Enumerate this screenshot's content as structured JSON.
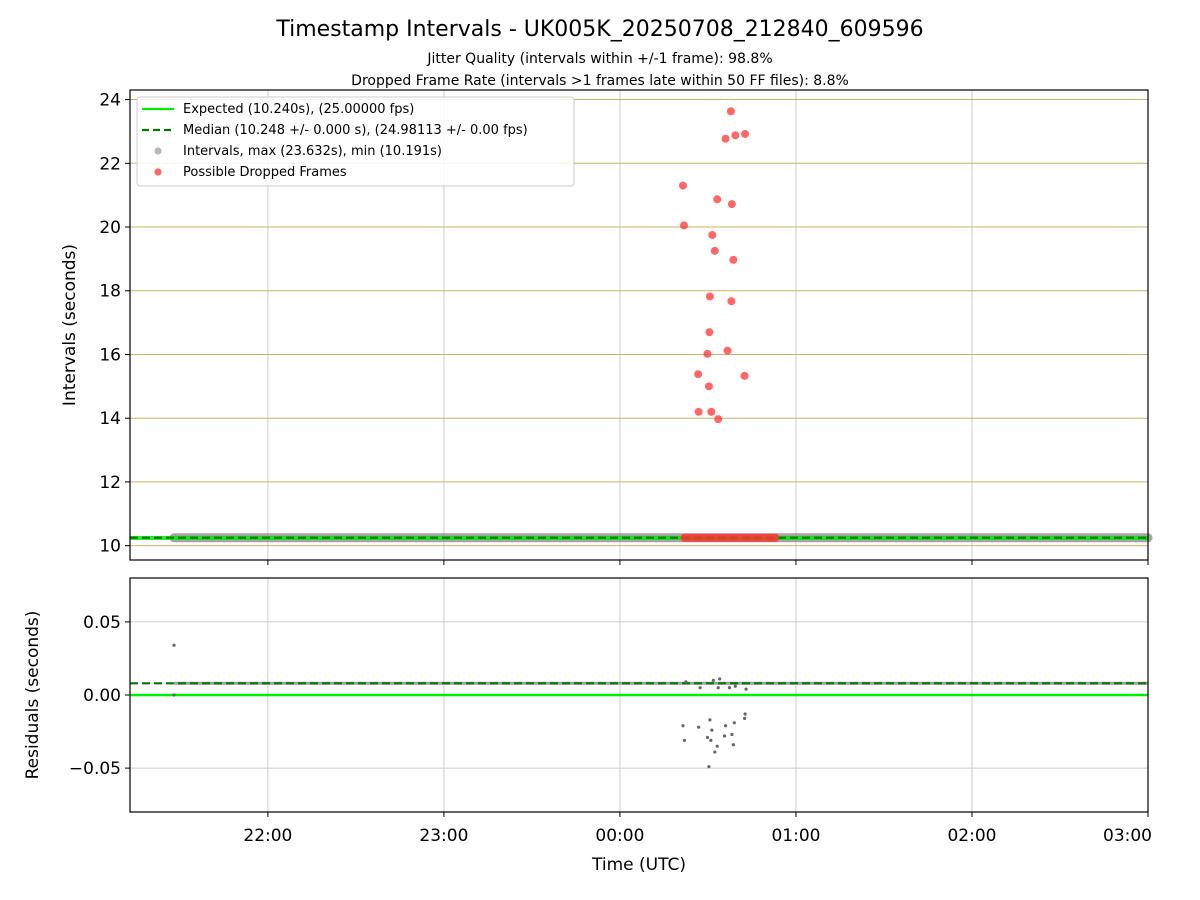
{
  "title": "Timestamp Intervals - UK005K_20250708_212840_609596",
  "subtitle_1": "Jitter Quality (intervals within +/-1 frame): 98.8%",
  "subtitle_2": "Dropped Frame Rate (intervals >1 frames late within 50 FF files): 8.8%",
  "colors": {
    "expected": "#00ee00",
    "median": "#007700",
    "intervals": "#888888",
    "dropped": "#ff3333",
    "grid_top": "#c8b464",
    "grid_bottom": "#cccccc"
  },
  "chart_data": [
    {
      "type": "scatter",
      "panel": "intervals",
      "ylabel": "Intervals (seconds)",
      "xlabel": "",
      "x_range": [
        "21:13",
        "03:00"
      ],
      "ylim": [
        9.55,
        24.3
      ],
      "y_ticks": [
        10,
        12,
        14,
        16,
        18,
        20,
        22,
        24
      ],
      "y_tick_labels": [
        "10",
        "12",
        "14",
        "16",
        "18",
        "20",
        "22",
        "24"
      ],
      "x_ticks": [
        "22:00",
        "23:00",
        "00:00",
        "01:00",
        "02:00",
        "03:00"
      ],
      "x_ticks_labeled": false,
      "grid": true,
      "legend_position": "top-left",
      "legend": [
        "Expected (10.240s), (25.00000 fps)",
        "Median (10.248 +/- 0.000 s), (24.98113 +/- 0.00 fps)",
        "Intervals, max (23.632s), min (10.191s)",
        "Possible Dropped Frames"
      ],
      "expected_value": 10.24,
      "median_value": 10.248,
      "interval_band": {
        "start": "21:28",
        "end": "03:00",
        "value": 10.248
      },
      "dropped_band": {
        "start": "00:22",
        "end": "00:53",
        "value": 10.25
      },
      "dropped_points": [
        {
          "time": "00:21:30",
          "value": 21.3
        },
        {
          "time": "00:21:50",
          "value": 20.05
        },
        {
          "time": "00:26:40",
          "value": 15.38
        },
        {
          "time": "00:26:50",
          "value": 14.2
        },
        {
          "time": "00:29:50",
          "value": 16.02
        },
        {
          "time": "00:30:20",
          "value": 15.0
        },
        {
          "time": "00:30:30",
          "value": 16.7
        },
        {
          "time": "00:30:40",
          "value": 17.82
        },
        {
          "time": "00:31:10",
          "value": 14.2
        },
        {
          "time": "00:31:30",
          "value": 19.75
        },
        {
          "time": "00:32:20",
          "value": 19.25
        },
        {
          "time": "00:33:10",
          "value": 20.87
        },
        {
          "time": "00:33:30",
          "value": 13.97
        },
        {
          "time": "00:36:00",
          "value": 22.77
        },
        {
          "time": "00:36:40",
          "value": 16.12
        },
        {
          "time": "00:37:50",
          "value": 23.632
        },
        {
          "time": "00:38:00",
          "value": 17.67
        },
        {
          "time": "00:38:10",
          "value": 20.72
        },
        {
          "time": "00:38:40",
          "value": 18.97
        },
        {
          "time": "00:39:20",
          "value": 22.88
        },
        {
          "time": "00:42:30",
          "value": 15.33
        },
        {
          "time": "00:42:40",
          "value": 22.92
        }
      ]
    },
    {
      "type": "scatter",
      "panel": "residuals",
      "ylabel": "Residuals (seconds)",
      "xlabel": "Time (UTC)",
      "x_range": [
        "21:13",
        "03:00"
      ],
      "ylim": [
        -0.08,
        0.08
      ],
      "y_ticks": [
        0.05,
        0.0,
        -0.05
      ],
      "y_tick_labels": [
        "0.05",
        "0.00",
        "−0.05"
      ],
      "x_ticks": [
        "22:00",
        "23:00",
        "00:00",
        "01:00",
        "02:00",
        "03:00"
      ],
      "x_tick_labels": [
        "22:00",
        "23:00",
        "00:00",
        "01:00",
        "02:00",
        "03:00"
      ],
      "grid": true,
      "expected_residual": 0.0,
      "median_residual": 0.008,
      "residual_band": {
        "start": "21:28",
        "end": "03:00",
        "value": 0.008
      },
      "points": [
        {
          "time": "21:28:00",
          "value": 0.034
        },
        {
          "time": "21:28:00",
          "value": 0.0
        },
        {
          "time": "00:21:30",
          "value": -0.021
        },
        {
          "time": "00:22:00",
          "value": -0.031
        },
        {
          "time": "00:22:30",
          "value": 0.009
        },
        {
          "time": "00:26:50",
          "value": -0.022
        },
        {
          "time": "00:27:20",
          "value": 0.005
        },
        {
          "time": "00:29:50",
          "value": -0.029
        },
        {
          "time": "00:30:20",
          "value": -0.049
        },
        {
          "time": "00:30:40",
          "value": -0.017
        },
        {
          "time": "00:31:00",
          "value": -0.031
        },
        {
          "time": "00:31:20",
          "value": -0.024
        },
        {
          "time": "00:31:50",
          "value": 0.01
        },
        {
          "time": "00:32:20",
          "value": -0.039
        },
        {
          "time": "00:33:10",
          "value": -0.035
        },
        {
          "time": "00:33:30",
          "value": 0.005
        },
        {
          "time": "00:34:00",
          "value": 0.011
        },
        {
          "time": "00:35:40",
          "value": -0.028
        },
        {
          "time": "00:36:00",
          "value": -0.021
        },
        {
          "time": "00:37:20",
          "value": 0.005
        },
        {
          "time": "00:38:10",
          "value": -0.027
        },
        {
          "time": "00:38:40",
          "value": -0.034
        },
        {
          "time": "00:39:00",
          "value": -0.019
        },
        {
          "time": "00:39:20",
          "value": 0.006
        },
        {
          "time": "00:42:30",
          "value": -0.016
        },
        {
          "time": "00:42:40",
          "value": -0.013
        },
        {
          "time": "00:43:00",
          "value": 0.004
        }
      ]
    }
  ]
}
